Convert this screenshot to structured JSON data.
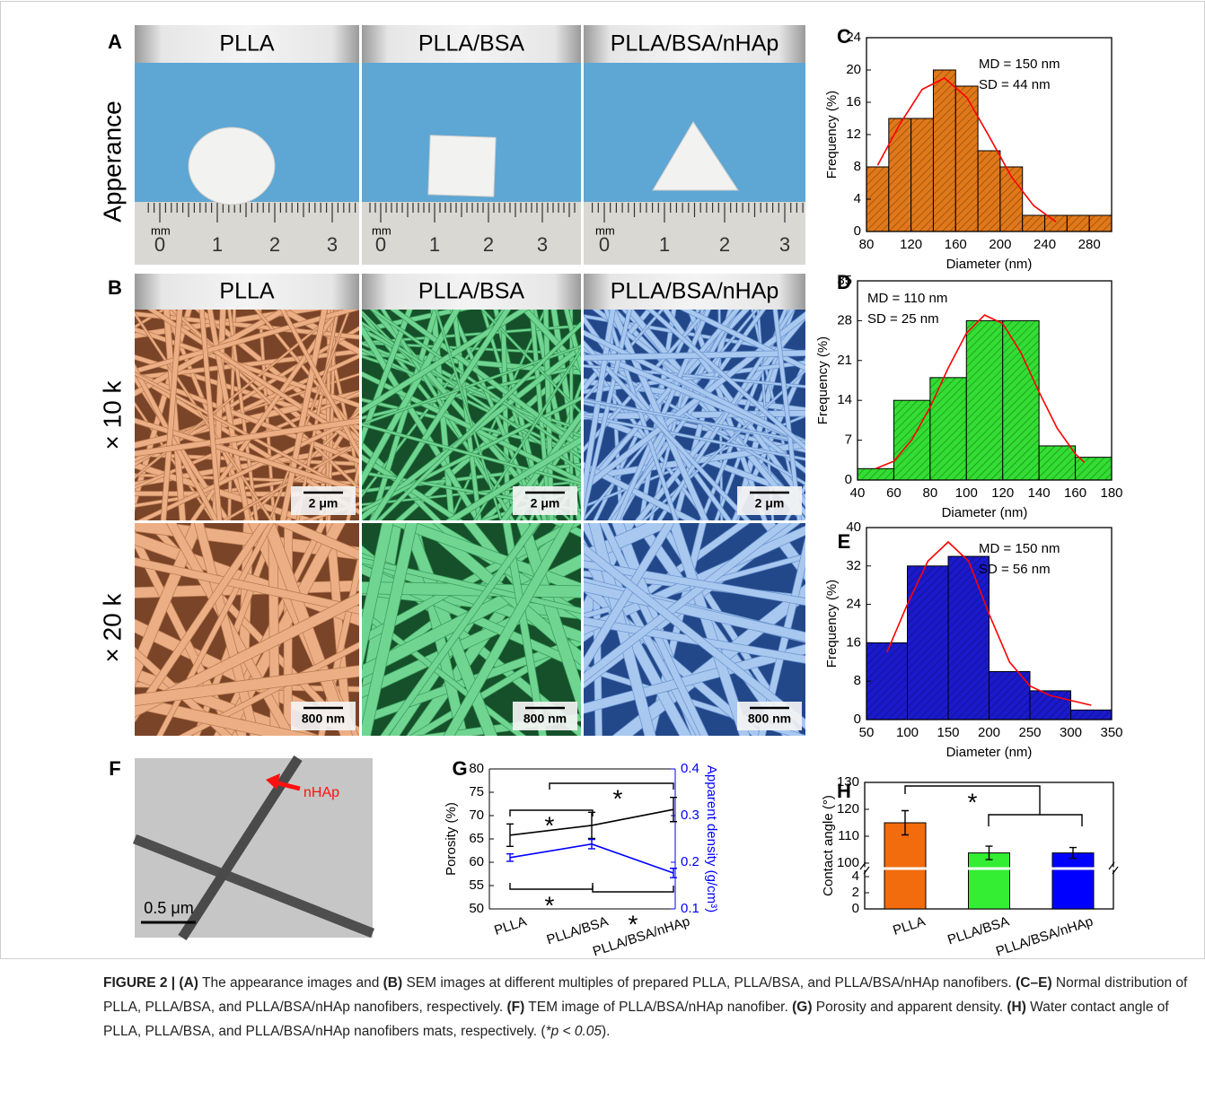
{
  "panels": {
    "A": {
      "label": "A",
      "row_label": "Apperance",
      "columns": [
        "PLLA",
        "PLLA/BSA",
        "PLLA/BSA/nHAp"
      ],
      "ruler": [
        "mm",
        "0",
        "1",
        "2",
        "3"
      ]
    },
    "B": {
      "label": "B",
      "columns": [
        "PLLA",
        "PLLA/BSA",
        "PLLA/BSA/nHAp"
      ],
      "row_labels": [
        "× 10 k",
        "× 20 k"
      ],
      "scale_bars": [
        "2 μm",
        "800 nm"
      ]
    },
    "F": {
      "label": "F",
      "annotation": "nHAp",
      "scale_bar": "0.5 μm"
    }
  },
  "chart_data": [
    {
      "type": "histogram",
      "panel": "C",
      "xlabel": "Diameter (nm)",
      "ylabel": "Frequency (%)",
      "bins": [
        80,
        100,
        120,
        140,
        160,
        180,
        200,
        220,
        240,
        260,
        280,
        300
      ],
      "values": [
        8,
        14,
        14,
        20,
        18,
        10,
        8,
        2,
        2,
        2,
        2
      ],
      "color": "#e0781a",
      "hatch": true,
      "xlim": [
        80,
        300
      ],
      "xticks": [
        80,
        120,
        160,
        200,
        240,
        280
      ],
      "ylim": [
        0,
        24
      ],
      "yticks": [
        0,
        4,
        8,
        12,
        16,
        20,
        24
      ],
      "annotations": [
        "MD = 150 nm",
        "SD = 44 nm"
      ],
      "fit": {
        "color": "#ff0000",
        "x": [
          90,
          110,
          130,
          150,
          170,
          190,
          210,
          230,
          250
        ],
        "values": [
          8.2,
          13.3,
          17.6,
          19,
          16.6,
          11.8,
          6.8,
          3.2,
          1.2
        ]
      }
    },
    {
      "type": "histogram",
      "panel": "D",
      "xlabel": "Diameter (nm)",
      "ylabel": "Frequency (%)",
      "bins": [
        40,
        60,
        80,
        100,
        120,
        140,
        160,
        180
      ],
      "values": [
        2,
        14,
        18,
        28,
        28,
        6,
        4
      ],
      "color": "#33dd33",
      "hatch": true,
      "xlim": [
        40,
        180
      ],
      "xticks": [
        40,
        60,
        80,
        100,
        120,
        140,
        160,
        180
      ],
      "ylim": [
        0,
        35
      ],
      "yticks": [
        0,
        7,
        14,
        21,
        28,
        35
      ],
      "annotations": [
        "MD = 110 nm",
        "SD = 25 nm"
      ],
      "fit": {
        "color": "#ff0000",
        "x": [
          50,
          60,
          70,
          80,
          90,
          100,
          110,
          120,
          130,
          140,
          150,
          160,
          165
        ],
        "values": [
          2,
          3.3,
          7.1,
          12.8,
          19.7,
          25.8,
          29,
          27.5,
          22.4,
          15.5,
          9.1,
          4.6,
          3.1
        ]
      }
    },
    {
      "type": "histogram",
      "panel": "E",
      "xlabel": "Diameter (nm)",
      "ylabel": "Frequency (%)",
      "bins": [
        50,
        100,
        150,
        200,
        250,
        300,
        350
      ],
      "values": [
        16,
        32,
        34,
        10,
        6,
        2
      ],
      "color": "#1a1acc",
      "hatch": true,
      "xlim": [
        50,
        350
      ],
      "xticks": [
        50,
        100,
        150,
        200,
        250,
        300,
        350
      ],
      "ylim": [
        0,
        40
      ],
      "yticks": [
        0,
        8,
        16,
        24,
        32,
        40
      ],
      "annotations": [
        "MD = 150 nm",
        "SD = 56 nm"
      ],
      "fit": {
        "color": "#ff0000",
        "x": [
          75,
          100,
          125,
          150,
          175,
          200,
          225,
          250,
          275,
          300,
          325
        ],
        "values": [
          14,
          24,
          33,
          37,
          33,
          22,
          12,
          7,
          5,
          4,
          3
        ]
      }
    },
    {
      "type": "line",
      "panel": "G",
      "categories": [
        "PLLA",
        "PLLA/BSA",
        "PLLA/BSA/nHAp"
      ],
      "ylabel": "Porosity (%)",
      "y2label": "Apparent density (g/cm³)",
      "ylim": [
        50,
        80
      ],
      "yticks": [
        50,
        55,
        60,
        65,
        70,
        75,
        80
      ],
      "y2lim": [
        0.1,
        0.4
      ],
      "y2ticks": [
        0.1,
        0.2,
        0.3,
        0.4
      ],
      "series": [
        {
          "color": "#000000",
          "values": [
            65.8,
            67.9,
            71.3
          ],
          "errors": [
            2.4,
            2.8,
            2.6
          ]
        },
        {
          "color": "#0000ff",
          "axis": "y2",
          "values": [
            0.21,
            0.239,
            0.177
          ],
          "errors": [
            0.008,
            0.01,
            0.01
          ]
        }
      ],
      "annotations": [
        "*",
        "*",
        "*",
        "*"
      ]
    },
    {
      "type": "bar",
      "panel": "H",
      "categories": [
        "PLLA",
        "PLLA/BSA",
        "PLLA/BSA/nHAp"
      ],
      "values": [
        115,
        103.8,
        103.8
      ],
      "errors": [
        4.5,
        2.5,
        2
      ],
      "colors": [
        "#f26b0c",
        "#33ee33",
        "#0000ff"
      ],
      "ylabel": "Contact angle (°)",
      "ylim_lower": [
        0,
        5
      ],
      "ylim_upper": [
        98,
        130
      ],
      "yticks": [
        0,
        2,
        4,
        100,
        110,
        120,
        130
      ],
      "annotations": [
        "*"
      ]
    }
  ],
  "caption": [
    {
      "text": "FIGURE 2 | (A)",
      "bold": true
    },
    {
      "text": " The appearance images and "
    },
    {
      "text": "(B)",
      "bold": true
    },
    {
      "text": " SEM images at different multiples of prepared PLLA, PLLA/BSA, and PLLA/BSA/nHAp nanofibers. "
    },
    {
      "text": "(C–E)",
      "bold": true
    },
    {
      "text": " Normal distribution of PLLA, PLLA/BSA, and PLLA/BSA/nHAp nanofibers, respectively. "
    },
    {
      "text": "(F)",
      "bold": true
    },
    {
      "text": " TEM image of PLLA/BSA/nHAp nanofiber. "
    },
    {
      "text": "(G)",
      "bold": true
    },
    {
      "text": " Porosity and apparent density. "
    },
    {
      "text": "(H)",
      "bold": true
    },
    {
      "text": " Water contact angle of PLLA, PLLA/BSA, and PLLA/BSA/nHAp nanofibers mats, respectively. ("
    },
    {
      "text": "*p < 0.05",
      "italic": true
    },
    {
      "text": ")."
    }
  ]
}
